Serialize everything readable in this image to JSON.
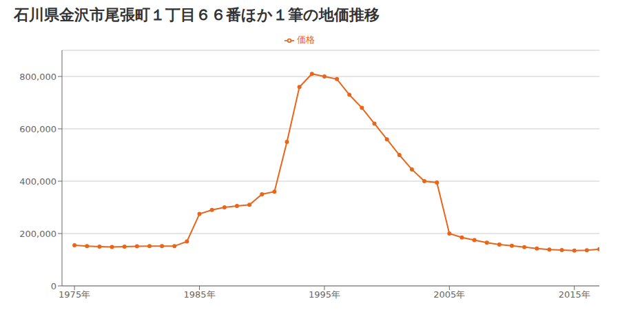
{
  "chart_data": {
    "type": "line",
    "title": "石川県金沢市尾張町１丁目６６番ほか１筆の地価推移",
    "x": [
      1975,
      1976,
      1977,
      1978,
      1979,
      1980,
      1981,
      1982,
      1983,
      1984,
      1985,
      1986,
      1987,
      1988,
      1989,
      1990,
      1991,
      1992,
      1993,
      1994,
      1995,
      1996,
      1997,
      1998,
      1999,
      2000,
      2001,
      2002,
      2003,
      2004,
      2005,
      2006,
      2007,
      2008,
      2009,
      2010,
      2011,
      2012,
      2013,
      2014,
      2015,
      2016,
      2017
    ],
    "series": [
      {
        "name": "価格",
        "color": "#e8651a",
        "marker": "circle",
        "values": [
          155000,
          152000,
          150000,
          149000,
          150000,
          151000,
          152000,
          152000,
          152000,
          170000,
          275000,
          290000,
          300000,
          305000,
          310000,
          350000,
          360000,
          550000,
          760000,
          810000,
          800000,
          790000,
          730000,
          680000,
          620000,
          560000,
          500000,
          445000,
          400000,
          395000,
          200000,
          185000,
          175000,
          165000,
          158000,
          153000,
          148000,
          143000,
          139000,
          137000,
          135000,
          136000,
          140000
        ]
      }
    ],
    "xlim": [
      1974,
      2017
    ],
    "ylim": [
      0,
      900000
    ],
    "xticks": [
      {
        "value": 1975,
        "label": "1975年"
      },
      {
        "value": 1985,
        "label": "1985年"
      },
      {
        "value": 1995,
        "label": "1995年"
      },
      {
        "value": 2005,
        "label": "2005年"
      },
      {
        "value": 2015,
        "label": "2015年"
      }
    ],
    "yticks": [
      0,
      {
        "value": 200000,
        "label": "200,000"
      },
      {
        "value": 400000,
        "label": "400,000"
      },
      {
        "value": 600000,
        "label": "600,000"
      },
      {
        "value": 800000,
        "label": "800,000"
      }
    ],
    "grid": "y",
    "legend": "top"
  }
}
